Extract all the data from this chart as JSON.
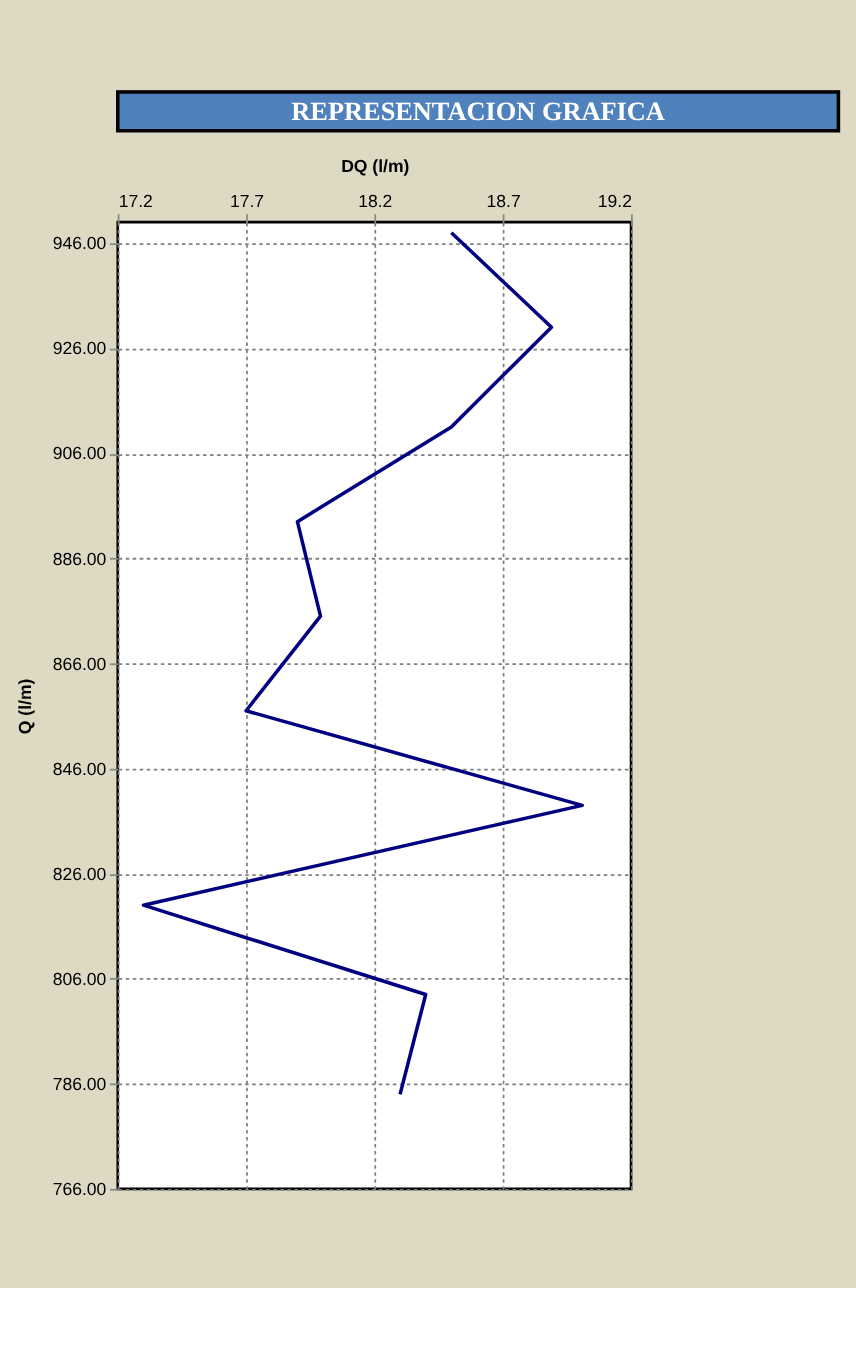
{
  "chart_data": {
    "type": "line",
    "title": "REPRESENTACION GRAFICA",
    "xlabel": "DQ (l/m)",
    "ylabel": "Q (l/m)",
    "x": [
      18.5,
      18.89,
      18.5,
      17.9,
      17.99,
      17.7,
      19.01,
      17.3,
      18.4,
      18.3
    ],
    "series": [
      {
        "color": "#000080",
        "values": [
          948,
          930,
          911,
          893,
          875,
          857,
          839,
          820,
          803,
          784
        ]
      }
    ],
    "xlim": [
      17.2,
      19.2
    ],
    "xticks": [
      17.2,
      17.7,
      18.2,
      18.7,
      19.2
    ],
    "ylim": [
      766,
      950
    ],
    "yticks": [
      {
        "value": 766,
        "label": "766.00"
      },
      {
        "value": 786,
        "label": "786.00"
      },
      {
        "value": 806,
        "label": "806.00"
      },
      {
        "value": 826,
        "label": "826.00"
      },
      {
        "value": 846,
        "label": "846.00"
      },
      {
        "value": 866,
        "label": "866.00"
      },
      {
        "value": 886,
        "label": "886.00"
      },
      {
        "value": 906,
        "label": "906.00"
      },
      {
        "value": 926,
        "label": "926.00"
      },
      {
        "value": 946,
        "label": "946.00"
      }
    ],
    "grid": true,
    "marker": "none",
    "line_style": "solid"
  }
}
